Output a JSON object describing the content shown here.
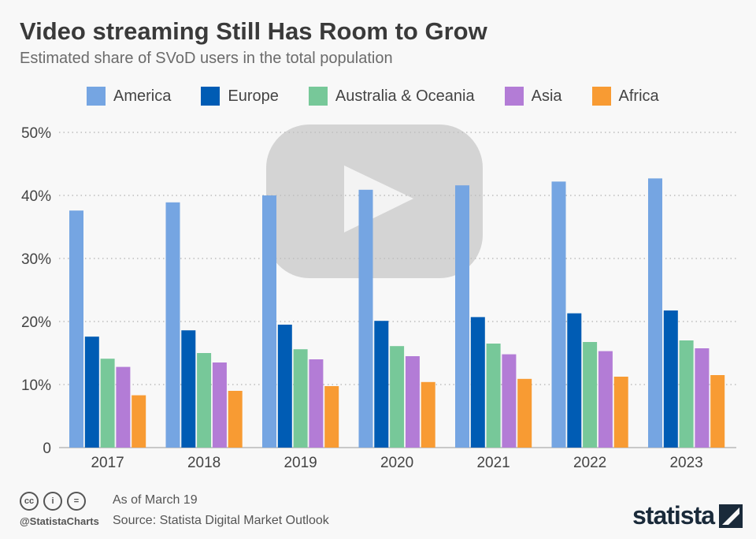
{
  "header": {
    "title": "Video streaming Still Has Room to Grow",
    "subtitle": "Estimated share of SVoD users in the total population"
  },
  "footer": {
    "as_of": "As of March 19",
    "source": "Source: Statista Digital Market Outlook",
    "handle": "@StatistaCharts",
    "logo": "statista",
    "icons": [
      "creative-commons-icon",
      "attribution-icon",
      "no-derivatives-icon"
    ]
  },
  "colors": {
    "America": "#75a5e2",
    "Europe": "#005cb4",
    "Australia & Oceania": "#77c899",
    "Asia": "#b37cd6",
    "Africa": "#f89b33",
    "background": "#f8f8f8"
  },
  "background_icon": "play-button-icon",
  "chart_data": {
    "type": "bar",
    "title": "Video streaming Still Has Room to Grow",
    "subtitle": "Estimated share of SVoD users in the total population",
    "categories": [
      "2017",
      "2018",
      "2019",
      "2020",
      "2021",
      "2022",
      "2023"
    ],
    "ylim": [
      0,
      50
    ],
    "yticks": [
      "0",
      "10%",
      "20%",
      "30%",
      "40%",
      "50%"
    ],
    "grid": true,
    "legend": "top",
    "series": [
      {
        "name": "America",
        "values": [
          37.6,
          38.9,
          40.0,
          40.9,
          41.6,
          42.2,
          42.7
        ]
      },
      {
        "name": "Europe",
        "values": [
          17.6,
          18.6,
          19.5,
          20.1,
          20.7,
          21.3,
          21.75
        ]
      },
      {
        "name": "Australia & Oceania",
        "values": [
          14.1,
          15.0,
          15.6,
          16.1,
          16.5,
          16.75,
          17.0
        ]
      },
      {
        "name": "Asia",
        "values": [
          12.8,
          13.5,
          14.0,
          14.5,
          14.8,
          15.3,
          15.75
        ]
      },
      {
        "name": "Africa",
        "values": [
          8.3,
          9.0,
          9.75,
          10.4,
          10.9,
          11.25,
          11.5
        ]
      }
    ]
  }
}
